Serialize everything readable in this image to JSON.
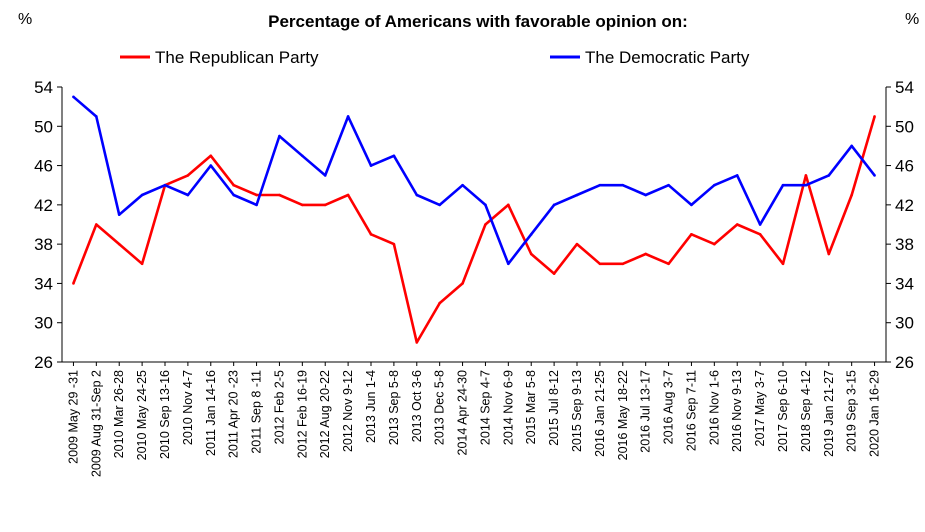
{
  "chart_data": {
    "type": "line",
    "title": "Percentage of Americans with favorable opinion on:",
    "y_unit_left": "%",
    "y_unit_right": "%",
    "ylim": [
      26,
      54
    ],
    "yticks": [
      26,
      30,
      34,
      38,
      42,
      46,
      50,
      54
    ],
    "grid": false,
    "legend_position": "top",
    "categories": [
      "2009 May 29 -31",
      "2009 Aug 31-Sep 2",
      "2010 Mar 26-28",
      "2010 May 24-25",
      "2010 Sep 13-16",
      "2010 Nov 4-7",
      "2011 Jan 14-16",
      "2011 Apr 20 -23",
      "2011 Sep 8 -11",
      "2012 Feb 2-5",
      "2012 Feb 16-19",
      "2012 Aug 20-22",
      "2012 Nov 9-12",
      "2013 Jun 1-4",
      "2013 Sep 5-8",
      "2013 Oct 3-6",
      "2013 Dec 5-8",
      "2014 Apr 24-30",
      "2014 Sep 4-7",
      "2014 Nov 6-9",
      "2015 Mar 5-8",
      "2015 Jul 8-12",
      "2015 Sep 9-13",
      "2016 Jan 21-25",
      "2016 May 18-22",
      "2016 Jul 13-17",
      "2016 Aug 3-7",
      "2016 Sep 7-11",
      "2016 Nov 1-6",
      "2016 Nov 9-13",
      "2017 May 3-7",
      "2017 Sep 6-10",
      "2018 Sep 4-12",
      "2019 Jan 21-27",
      "2019 Sep 3-15",
      "2020 Jan 16-29"
    ],
    "series": [
      {
        "name": "The Republican Party",
        "color": "#ff0000",
        "values": [
          34,
          40,
          38,
          36,
          44,
          45,
          47,
          44,
          43,
          43,
          42,
          42,
          43,
          39,
          38,
          28,
          32,
          34,
          40,
          42,
          37,
          35,
          38,
          36,
          36,
          37,
          36,
          39,
          38,
          40,
          39,
          36,
          45,
          37,
          43,
          51
        ]
      },
      {
        "name": "The Democratic Party",
        "color": "#0000ff",
        "values": [
          53,
          51,
          41,
          43,
          44,
          43,
          46,
          43,
          42,
          49,
          47,
          45,
          51,
          46,
          47,
          43,
          42,
          44,
          42,
          36,
          39,
          42,
          43,
          44,
          44,
          43,
          44,
          42,
          44,
          45,
          40,
          44,
          44,
          45,
          48,
          45
        ]
      }
    ]
  }
}
